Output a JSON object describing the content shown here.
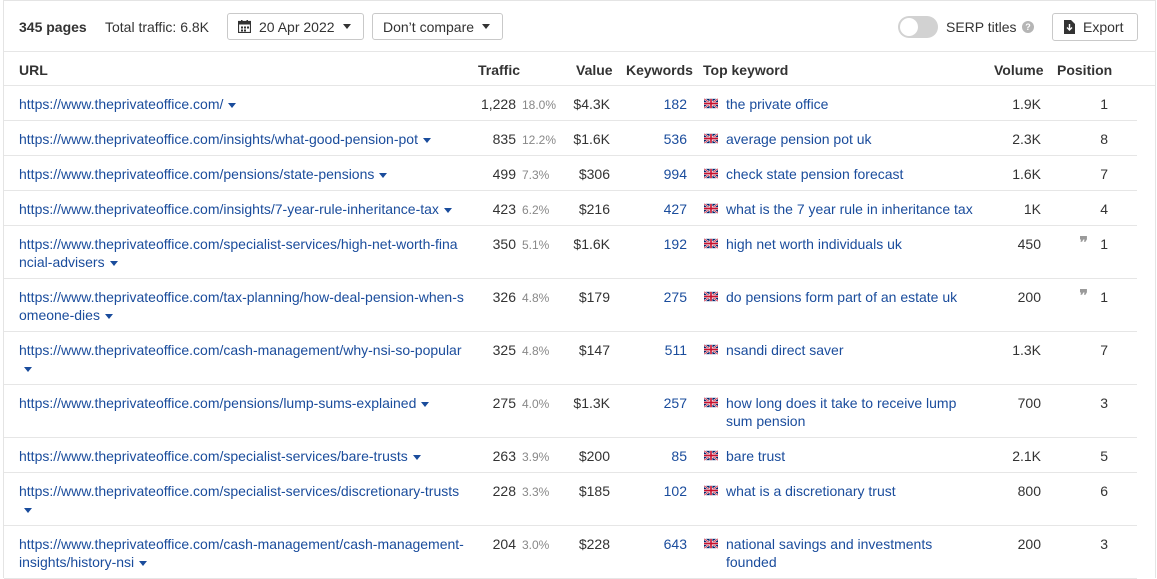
{
  "toolbar": {
    "pages_count": "345 pages",
    "total_traffic": "Total traffic: 6.8K",
    "date": "20 Apr 2022",
    "compare": "Don’t compare",
    "serp_titles_label": "SERP titles",
    "serp_titles_on": false,
    "help": "?",
    "export_label": "Export"
  },
  "table": {
    "columns": {
      "url": "URL",
      "traffic": "Traffic",
      "value": "Value",
      "keywords": "Keywords",
      "top_keyword": "Top keyword",
      "volume": "Volume",
      "position": "Position"
    },
    "quote_mark": "❞",
    "rows": [
      {
        "url": "https://www.theprivateoffice.com/",
        "traffic": "1,228",
        "traffic_pct": "18.0%",
        "value": "$4.3K",
        "keywords": "182",
        "top_keyword": "the private office",
        "volume": "1.9K",
        "position": "1",
        "featured": false
      },
      {
        "url": "https://www.theprivateoffice.com/insights/what-good-pension-pot",
        "traffic": "835",
        "traffic_pct": "12.2%",
        "value": "$1.6K",
        "keywords": "536",
        "top_keyword": "average pension pot uk",
        "volume": "2.3K",
        "position": "8",
        "featured": false
      },
      {
        "url": "https://www.theprivateoffice.com/pensions/state-pensions",
        "traffic": "499",
        "traffic_pct": "7.3%",
        "value": "$306",
        "keywords": "994",
        "top_keyword": "check state pension forecast",
        "volume": "1.6K",
        "position": "7",
        "featured": false
      },
      {
        "url": "https://www.theprivateoffice.com/insights/7-year-rule-inheritance-tax",
        "traffic": "423",
        "traffic_pct": "6.2%",
        "value": "$216",
        "keywords": "427",
        "top_keyword": "what is the 7 year rule in inheritance tax",
        "volume": "1K",
        "position": "4",
        "featured": false
      },
      {
        "url": "https://www.theprivateoffice.com/specialist-services/high-net-worth-financial-advisers",
        "traffic": "350",
        "traffic_pct": "5.1%",
        "value": "$1.6K",
        "keywords": "192",
        "top_keyword": "high net worth individuals uk",
        "volume": "450",
        "position": "1",
        "featured": true
      },
      {
        "url": "https://www.theprivateoffice.com/tax-planning/how-deal-pension-when-someone-dies",
        "traffic": "326",
        "traffic_pct": "4.8%",
        "value": "$179",
        "keywords": "275",
        "top_keyword": "do pensions form part of an estate uk",
        "volume": "200",
        "position": "1",
        "featured": true
      },
      {
        "url": "https://www.theprivateoffice.com/cash-management/why-nsi-so-popular",
        "traffic": "325",
        "traffic_pct": "4.8%",
        "value": "$147",
        "keywords": "511",
        "top_keyword": "nsandi direct saver",
        "volume": "1.3K",
        "position": "7",
        "featured": false
      },
      {
        "url": "https://www.theprivateoffice.com/pensions/lump-sums-explained",
        "traffic": "275",
        "traffic_pct": "4.0%",
        "value": "$1.3K",
        "keywords": "257",
        "top_keyword": "how long does it take to receive lump sum pension",
        "volume": "700",
        "position": "3",
        "featured": false
      },
      {
        "url": "https://www.theprivateoffice.com/specialist-services/bare-trusts",
        "traffic": "263",
        "traffic_pct": "3.9%",
        "value": "$200",
        "keywords": "85",
        "top_keyword": "bare trust",
        "volume": "2.1K",
        "position": "5",
        "featured": false
      },
      {
        "url": "https://www.theprivateoffice.com/specialist-services/discretionary-trusts",
        "traffic": "228",
        "traffic_pct": "3.3%",
        "value": "$185",
        "keywords": "102",
        "top_keyword": "what is a discretionary trust",
        "volume": "800",
        "position": "6",
        "featured": false
      },
      {
        "url": "https://www.theprivateoffice.com/cash-management/cash-management-insights/history-nsi",
        "traffic": "204",
        "traffic_pct": "3.0%",
        "value": "$228",
        "keywords": "643",
        "top_keyword": "national savings and investments founded",
        "volume": "200",
        "position": "3",
        "featured": false
      }
    ]
  }
}
